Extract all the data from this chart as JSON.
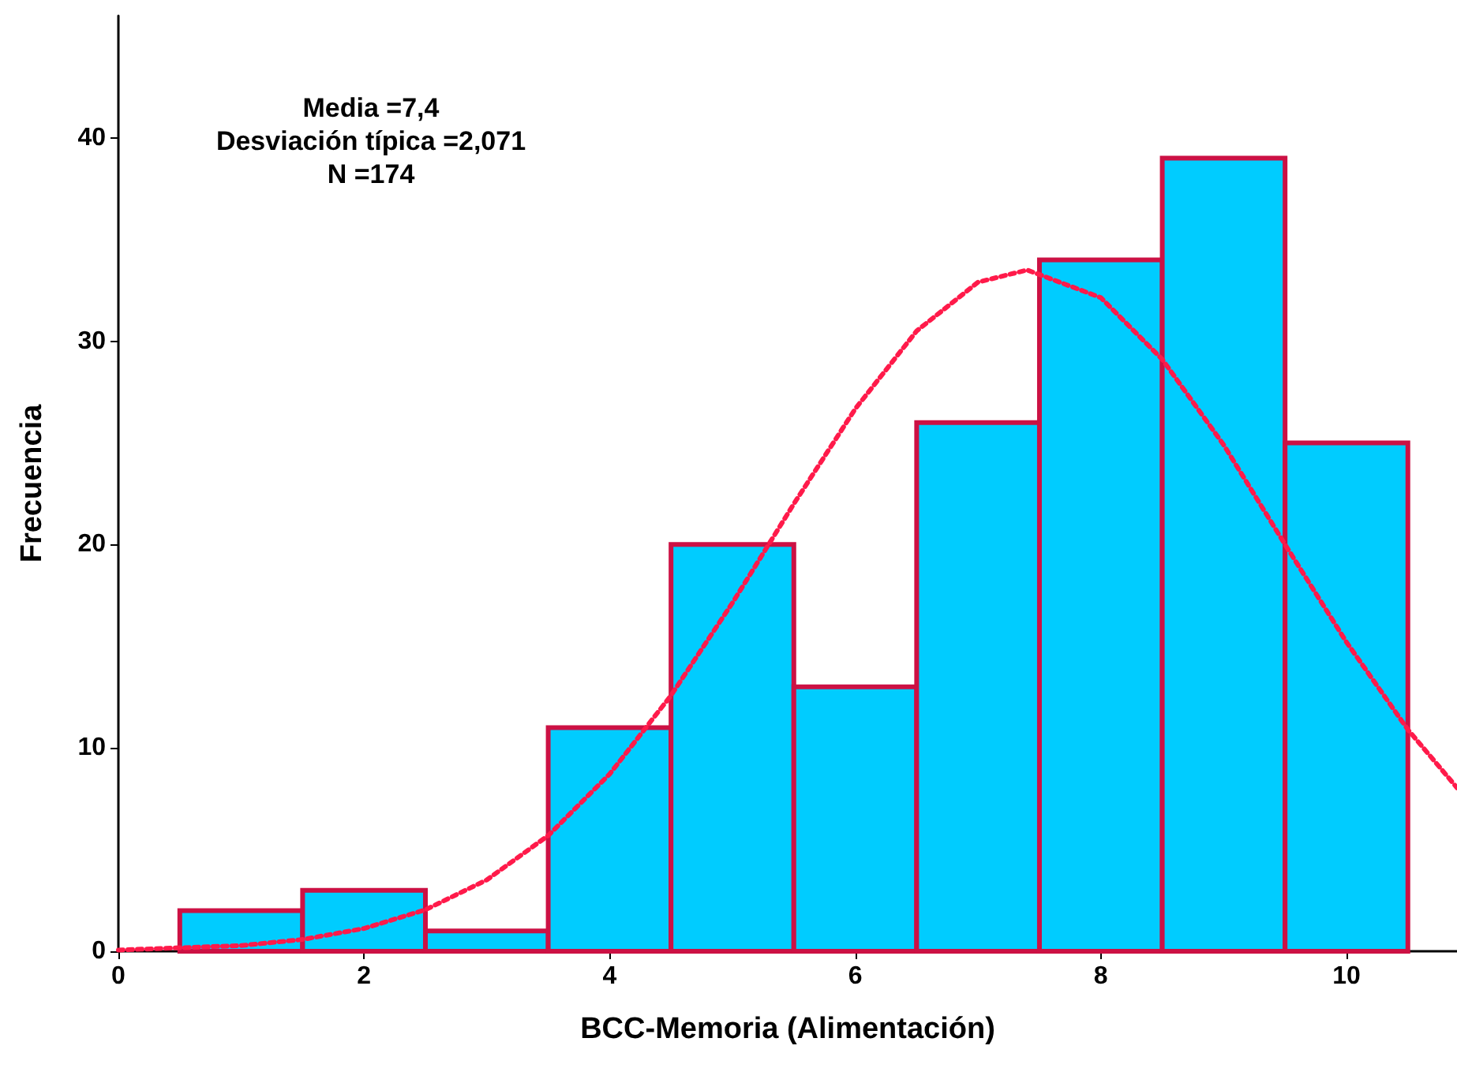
{
  "chart_data": {
    "type": "histogram",
    "xlabel": "BCC-Memoria (Alimentación)",
    "ylabel": "Frecuencia",
    "annotations": [
      "Media =7,4",
      "Desviación típica =2,071",
      "N =174"
    ],
    "bins": [
      0.5,
      1.5,
      2.5,
      3.5,
      4.5,
      5.5,
      6.5,
      7.5,
      8.5,
      9.5,
      10.5
    ],
    "values": [
      2,
      3,
      1,
      11,
      20,
      13,
      26,
      34,
      39,
      25
    ],
    "color": "#00ccff",
    "series": [
      {
        "type": "line",
        "color": "#ff1a4a",
        "line_style": "dotted",
        "marker": "none",
        "x": [
          0,
          1,
          1.5,
          2,
          2.5,
          3,
          3.5,
          4,
          4.5,
          5,
          5.5,
          6,
          6.5,
          7,
          7.4,
          8,
          8.5,
          9,
          9.5,
          10,
          10.5,
          10.9
        ],
        "values": [
          0.06,
          0.28,
          0.58,
          1.12,
          2.04,
          3.51,
          5.69,
          8.71,
          12.58,
          17.13,
          22.0,
          26.67,
          30.5,
          32.9,
          33.5,
          32.14,
          29.1,
          24.9,
          20.0,
          15.2,
          10.9,
          8.04
        ]
      }
    ],
    "xlim": [
      0,
      10.9
    ],
    "xticks": [
      0,
      2,
      4,
      6,
      8,
      10
    ],
    "ylim": [
      0,
      46
    ],
    "yticks": [
      0,
      10,
      20,
      30,
      40
    ],
    "grid": false
  }
}
